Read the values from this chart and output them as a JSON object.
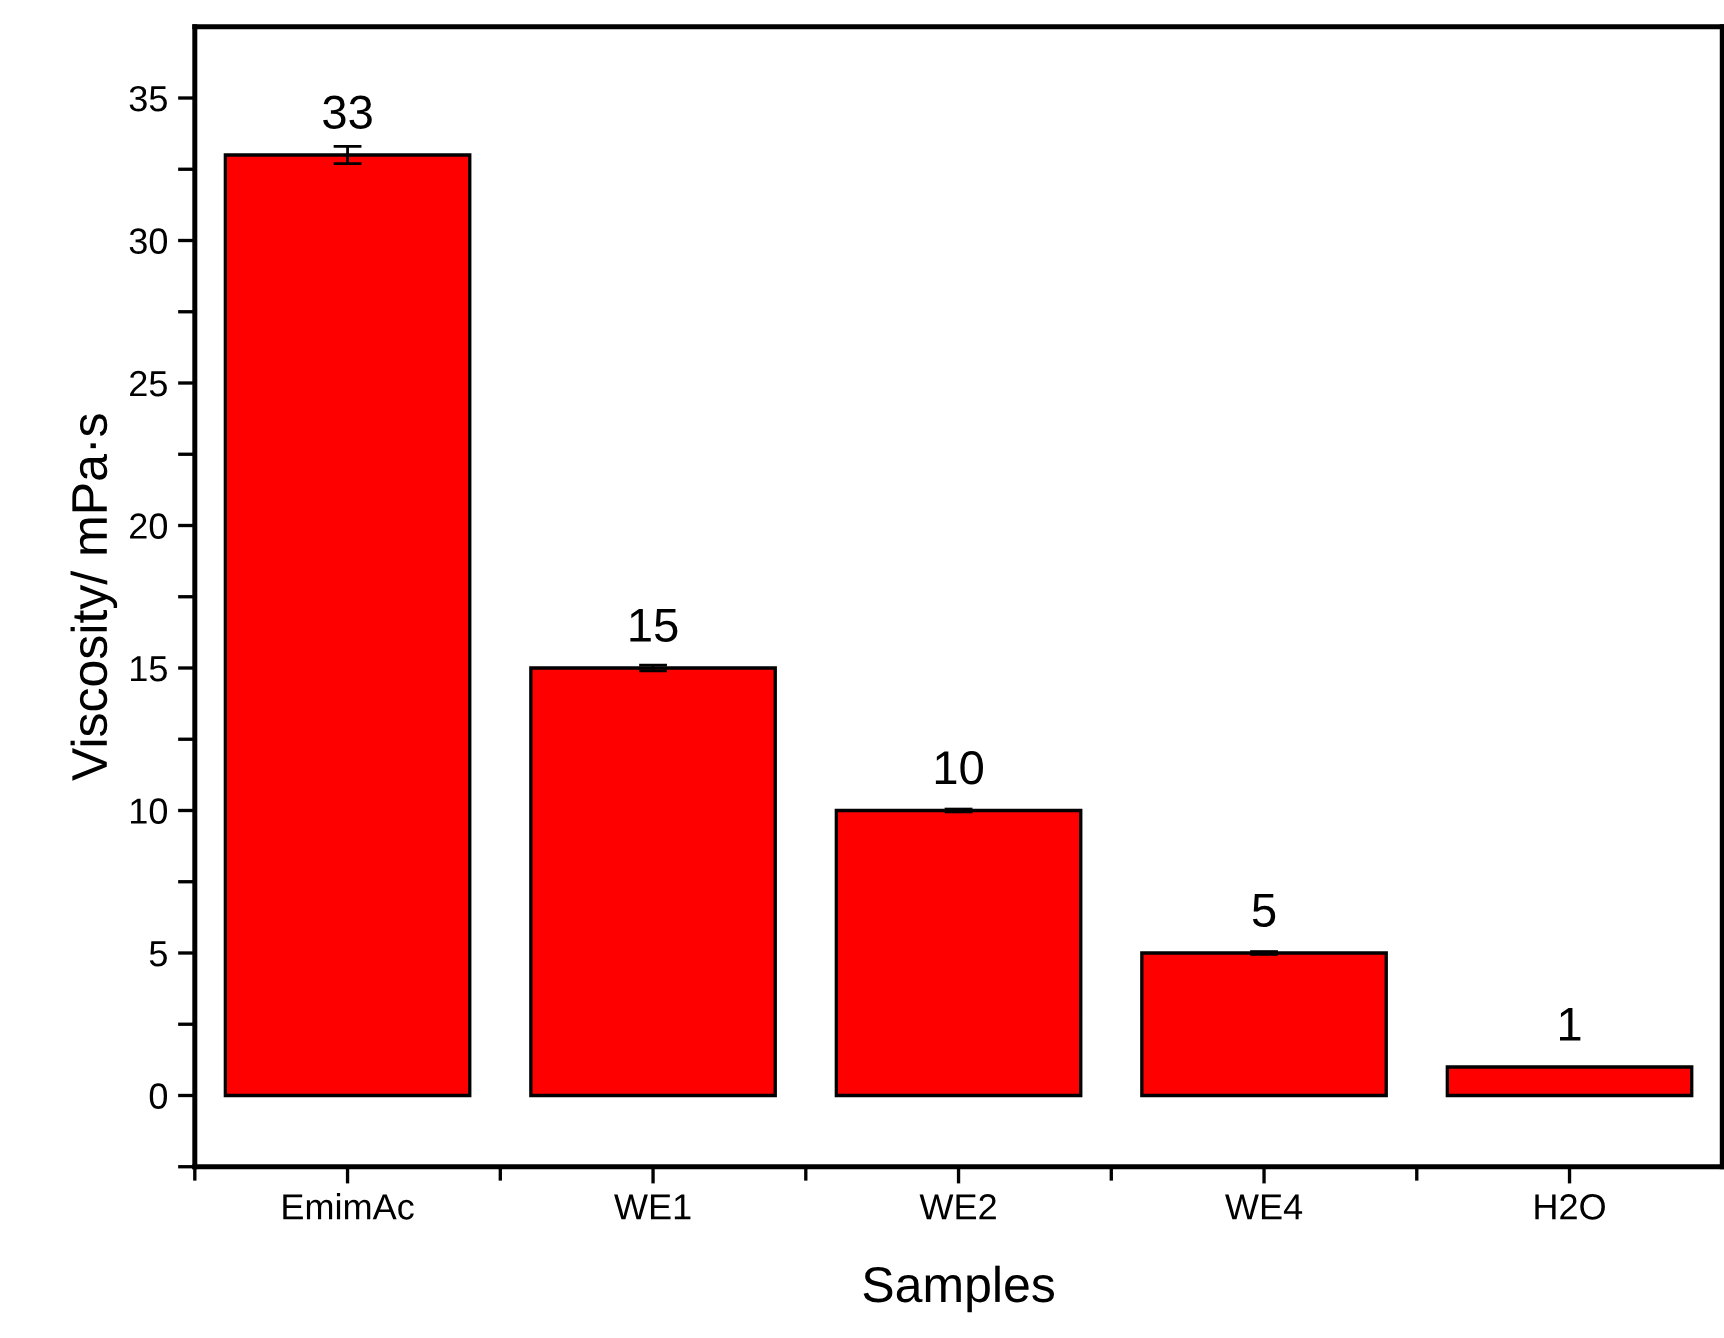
{
  "chart_data": {
    "type": "bar",
    "xlabel": "Samples",
    "ylabel": "Viscosity/ mPa·s",
    "categories": [
      "EmimAc",
      "WE1",
      "WE2",
      "WE4",
      "H2O"
    ],
    "values": [
      33,
      15,
      10,
      5,
      1
    ],
    "errors": [
      0.3,
      0.1,
      0.05,
      0.05,
      null
    ],
    "color": "#ff0000",
    "data_labels": true,
    "ylim": [
      -2.5,
      37.5
    ],
    "yticks": [
      {
        "value": -2.5,
        "label": null
      },
      0,
      {
        "value": 2.5,
        "label": null
      },
      5,
      {
        "value": 7.5,
        "label": null
      },
      10,
      {
        "value": 12.5,
        "label": null
      },
      15,
      {
        "value": 17.5,
        "label": null
      },
      20,
      {
        "value": 22.5,
        "label": null
      },
      25,
      {
        "value": 27.5,
        "label": null
      },
      30,
      {
        "value": 32.5,
        "label": null
      },
      35
    ],
    "grid": false,
    "legend": false
  }
}
